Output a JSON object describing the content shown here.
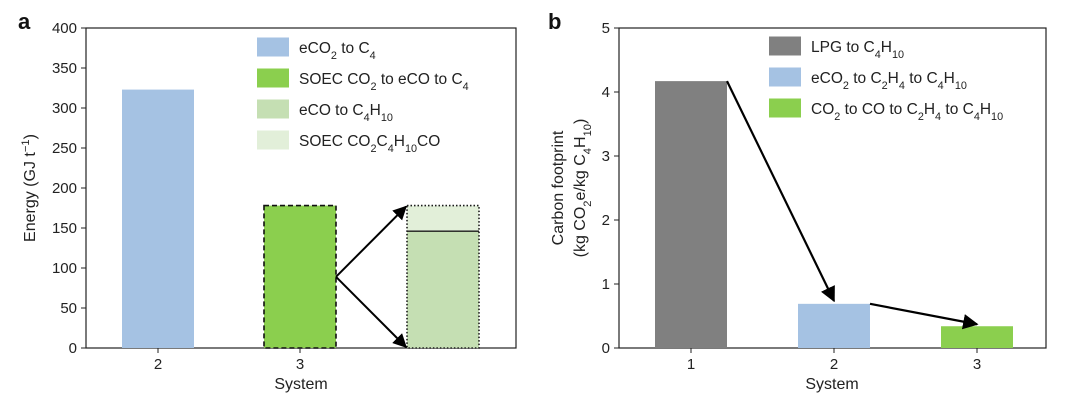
{
  "chart_data": [
    {
      "panel": "a",
      "type": "bar",
      "xlabel": "System",
      "ylabel": "Energy (GJ t⁻¹)",
      "ylabel_parts": [
        {
          "t": "Energy (GJ t"
        },
        {
          "t": "−1",
          "sup": true
        },
        {
          "t": ")"
        }
      ],
      "ylim": [
        0,
        400
      ],
      "yticks": [
        0,
        50,
        100,
        150,
        200,
        250,
        300,
        350,
        400
      ],
      "categories": [
        "2",
        "3"
      ],
      "grid": false,
      "legend_position": "top-right",
      "legend": [
        {
          "color": "#a5c2e3",
          "parts": [
            {
              "t": "eCO"
            },
            {
              "t": "2",
              "sub": true
            },
            {
              "t": " to C"
            },
            {
              "t": "4",
              "sub": true
            }
          ]
        },
        {
          "color": "#8bcf4e",
          "parts": [
            {
              "t": "SOEC CO"
            },
            {
              "t": "2",
              "sub": true
            },
            {
              "t": " to eCO to C"
            },
            {
              "t": "4",
              "sub": true
            }
          ]
        },
        {
          "color": "#c5dfb3",
          "parts": [
            {
              "t": "eCO to C"
            },
            {
              "t": "4",
              "sub": true
            },
            {
              "t": "H"
            },
            {
              "t": "10",
              "sub": true
            }
          ]
        },
        {
          "color": "#e2efd9",
          "parts": [
            {
              "t": "SOEC CO"
            },
            {
              "t": "2",
              "sub": true
            },
            {
              "t": "C"
            },
            {
              "t": "4",
              "sub": true
            },
            {
              "t": "H"
            },
            {
              "t": "10",
              "sub": true
            },
            {
              "t": "CO"
            }
          ]
        }
      ],
      "bars": [
        {
          "category": "2",
          "series": "eCO2 to C4",
          "value": 323,
          "color": "#a5c2e3",
          "border": "none"
        },
        {
          "category": "3",
          "series": "SOEC CO2 to eCO to C4",
          "value": 178,
          "color": "#8bcf4e",
          "border": "dashed"
        }
      ],
      "breakdown": {
        "total": 178,
        "segments": [
          {
            "series": "eCO to C4H10",
            "value": 146,
            "color": "#c5dfb3"
          },
          {
            "series": "SOEC CO2C4H10CO",
            "value": 32,
            "color": "#e2efd9"
          }
        ]
      }
    },
    {
      "panel": "b",
      "type": "bar",
      "xlabel": "System",
      "ylabel_line1": "Carbon footprint",
      "ylabel_parts": [
        {
          "t": "(kg CO"
        },
        {
          "t": "2",
          "sub": true
        },
        {
          "t": "e/kg C"
        },
        {
          "t": "4",
          "sub": true
        },
        {
          "t": "H"
        },
        {
          "t": "10",
          "sub": true
        },
        {
          "t": ")"
        }
      ],
      "ylim": [
        0,
        5
      ],
      "yticks": [
        0,
        1,
        2,
        3,
        4,
        5
      ],
      "categories": [
        "1",
        "2",
        "3"
      ],
      "grid": false,
      "legend_position": "top-right",
      "values": [
        4.17,
        0.69,
        0.34
      ],
      "colors": [
        "#808080",
        "#a5c2e3",
        "#8bcf4e"
      ],
      "legend": [
        {
          "color": "#808080",
          "parts": [
            {
              "t": "LPG to C"
            },
            {
              "t": "4",
              "sub": true
            },
            {
              "t": "H"
            },
            {
              "t": "10",
              "sub": true
            }
          ]
        },
        {
          "color": "#a5c2e3",
          "parts": [
            {
              "t": "eCO"
            },
            {
              "t": "2",
              "sub": true
            },
            {
              "t": " to C"
            },
            {
              "t": "2",
              "sub": true
            },
            {
              "t": "H"
            },
            {
              "t": "4",
              "sub": true
            },
            {
              "t": " to C"
            },
            {
              "t": "4",
              "sub": true
            },
            {
              "t": "H"
            },
            {
              "t": "10",
              "sub": true
            }
          ]
        },
        {
          "color": "#8bcf4e",
          "parts": [
            {
              "t": "CO"
            },
            {
              "t": "2",
              "sub": true
            },
            {
              "t": " to CO to C"
            },
            {
              "t": "2",
              "sub": true
            },
            {
              "t": "H"
            },
            {
              "t": "4",
              "sub": true
            },
            {
              "t": " to C"
            },
            {
              "t": "4",
              "sub": true
            },
            {
              "t": "H"
            },
            {
              "t": "10",
              "sub": true
            }
          ]
        }
      ]
    }
  ],
  "panel_labels": [
    "a",
    "b"
  ]
}
